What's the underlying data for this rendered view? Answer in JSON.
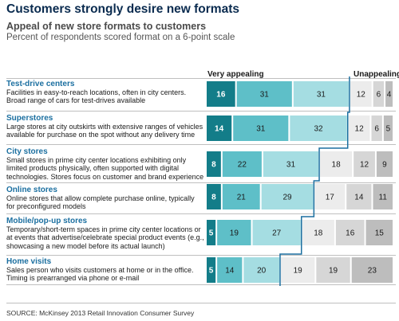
{
  "title": "Customers strongly desire new formats",
  "subtitle": "Appeal of new store formats to customers",
  "description": "Percent of respondents scored format on a 6-point scale",
  "source": "SOURCE: McKinsey 2013 Retail Innovation Consumer Survey",
  "legend": {
    "left": "Very appealing",
    "right": "Unappealing"
  },
  "categories": [
    {
      "name": "Test-drive centers",
      "description": "Facilities in easy-to-reach locations, often in city centers. Broad range of cars for test-drives available"
    },
    {
      "name": "Superstores",
      "description": "Large stores at city outskirts with extensive ranges of vehicles available for purchase on the spot without any delivery time"
    },
    {
      "name": "City stores",
      "description": "Small stores in prime city center locations exhibiting only limited products physically, often supported with digital technologies. Stores focus on customer and brand experience"
    },
    {
      "name": "Online stores",
      "description": "Online stores that allow complete purchase online, typically for preconfigured models"
    },
    {
      "name": "Mobile/pop-up stores",
      "description": "Temporary/short-term spaces in prime city center locations or at events that advertise/celebrate special product events (e.g., showcasing a new model before its actual launch)"
    },
    {
      "name": "Home visits",
      "description": "Sales person who visits customers at home or in the office. Timing is prearranged via phone or e-mail"
    }
  ],
  "colors": {
    "scale": [
      "#137d89",
      "#5ebfc8",
      "#a5dde2",
      "#ececec",
      "#d6d6d6",
      "#bdbdbd"
    ],
    "label_light": "#ffffff",
    "label_dark": "#1a1a1a",
    "divider_line": "#1b6fa0",
    "category_name": "#1b6fa0"
  },
  "chart_data": {
    "type": "bar",
    "orientation": "horizontal-stacked-100",
    "scale_points": 6,
    "categories": [
      "Test-drive centers",
      "Superstores",
      "City stores",
      "Online stores",
      "Mobile/pop-up stores",
      "Home visits"
    ],
    "series": [
      {
        "values": [
          16,
          14,
          8,
          8,
          5,
          5
        ]
      },
      {
        "values": [
          31,
          31,
          22,
          21,
          19,
          14
        ]
      },
      {
        "values": [
          31,
          32,
          31,
          29,
          27,
          20
        ]
      },
      {
        "values": [
          12,
          12,
          18,
          17,
          18,
          19
        ]
      },
      {
        "values": [
          6,
          6,
          12,
          14,
          16,
          19
        ]
      },
      {
        "values": [
          4,
          5,
          9,
          11,
          15,
          23
        ]
      }
    ]
  }
}
